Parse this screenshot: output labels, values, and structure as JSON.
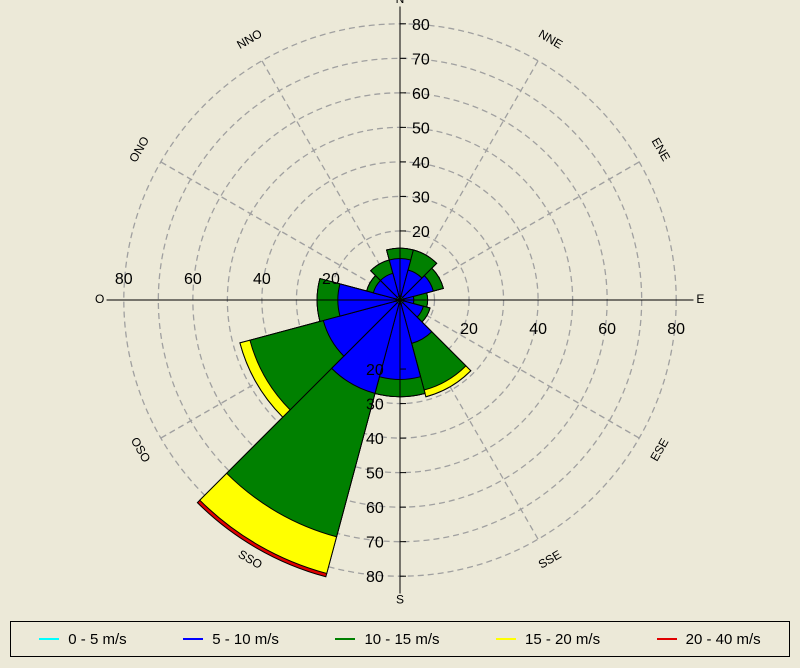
{
  "chart_data": {
    "type": "windrose",
    "directions": [
      "N",
      "NNE",
      "ENE",
      "E",
      "ESE",
      "SSE",
      "S",
      "SSO",
      "OSO",
      "O",
      "ONO",
      "NNO"
    ],
    "radial_ticks": [
      20,
      30,
      40,
      50,
      60,
      70,
      80
    ],
    "horizontal_ticks": [
      20,
      40,
      60,
      80
    ],
    "r_max": 84,
    "grid": true,
    "legend_position": "bottom",
    "series": [
      {
        "name": "0 - 5 m/s",
        "color": "#00ffff",
        "values": [
          1,
          1,
          1,
          1,
          1,
          1,
          1,
          1,
          1,
          1,
          1,
          1
        ]
      },
      {
        "name": "5 - 10 m/s",
        "color": "#0000ff",
        "values": [
          12,
          9,
          10,
          4,
          7,
          13,
          23,
          28,
          23,
          18,
          8,
          8
        ]
      },
      {
        "name": "10 - 15 m/s",
        "color": "#008000",
        "values": [
          15,
          15,
          13,
          8,
          9,
          27,
          28,
          71,
          45,
          24,
          10,
          12
        ]
      },
      {
        "name": "15 - 20 m/s",
        "color": "#ffff00",
        "values": [
          15,
          15,
          13,
          8,
          9,
          29,
          28,
          82,
          48,
          24,
          10,
          12
        ]
      },
      {
        "name": "20 - 40 m/s",
        "color": "#e00000",
        "values": [
          15,
          15,
          13,
          8,
          9,
          29,
          28,
          83,
          48,
          24,
          10,
          12
        ]
      }
    ]
  }
}
